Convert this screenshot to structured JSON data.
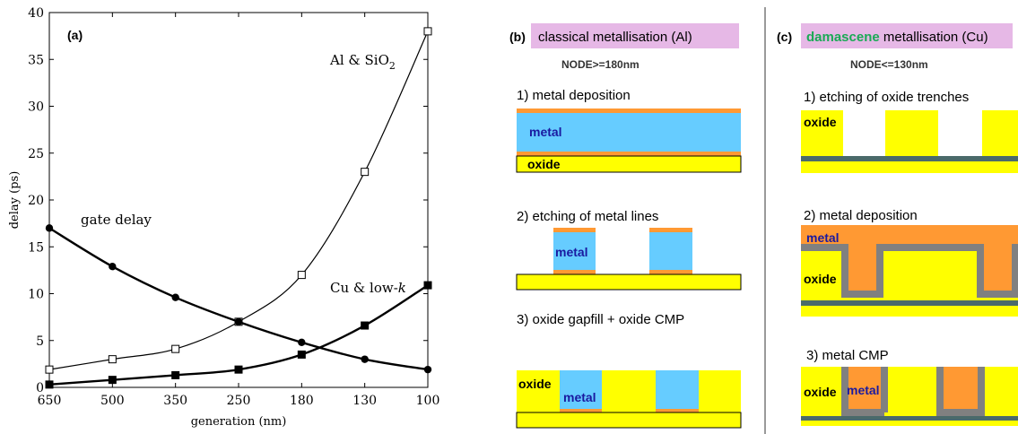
{
  "panel_a": {
    "label": "(a)",
    "y_label": "delay (ps)",
    "x_label": "generation (nm)",
    "series_labels": {
      "al_sio2_main": "Al & SiO",
      "al_sio2_sub": "2",
      "gate_delay": "gate delay",
      "cu_main": "Cu & low-",
      "cu_k": "k"
    }
  },
  "chart_data": {
    "type": "line",
    "x": [
      "650",
      "500",
      "350",
      "250",
      "180",
      "130",
      "100"
    ],
    "y_ticks": [
      "0",
      "5",
      "10",
      "15",
      "20",
      "25",
      "30",
      "35",
      "40"
    ],
    "ylim": [
      0,
      40
    ],
    "xlabel": "generation (nm)",
    "ylabel": "delay (ps)",
    "series": [
      {
        "key": "al_sio2",
        "name": "Al & SiO2",
        "marker": "open-square",
        "values": [
          1.9,
          3.0,
          4.1,
          7.0,
          12.0,
          23.0,
          38.0
        ]
      },
      {
        "key": "gate",
        "name": "gate delay",
        "marker": "filled-circle",
        "values": [
          17.0,
          12.9,
          9.6,
          7.0,
          4.8,
          3.0,
          1.9
        ]
      },
      {
        "key": "cu_lowk",
        "name": "Cu & low-k",
        "marker": "filled-square",
        "values": [
          0.3,
          0.8,
          1.3,
          1.9,
          3.5,
          6.6,
          10.9
        ]
      }
    ]
  },
  "panel_b": {
    "label": "(b)",
    "title": "classical metallisation (Al)",
    "node": "NODE>=180nm",
    "step1": "1) metal deposition",
    "step2": "2) etching of metal lines",
    "step3": "3) oxide gapfill + oxide CMP",
    "metal": "metal",
    "oxide": "oxide"
  },
  "panel_c": {
    "label": "(c)",
    "title_highlight": "damascene",
    "title_rest": " metallisation (Cu)",
    "node": "NODE<=130nm",
    "step1": "1) etching of oxide trenches",
    "step2": "2) metal deposition",
    "step3": "3) metal CMP",
    "metal": "metal",
    "oxide": "oxide"
  },
  "colors": {
    "oxide": "#ffff00",
    "metal_al": "#66ccff",
    "metal_cu": "#ff9933",
    "barrier": "#ff9933",
    "liner": "#808080",
    "etch_stop": "#4a6a6a",
    "title_box": "#e6b8e6",
    "damascene_text": "#1aaa55",
    "metal_text": "#1a1aa0"
  }
}
